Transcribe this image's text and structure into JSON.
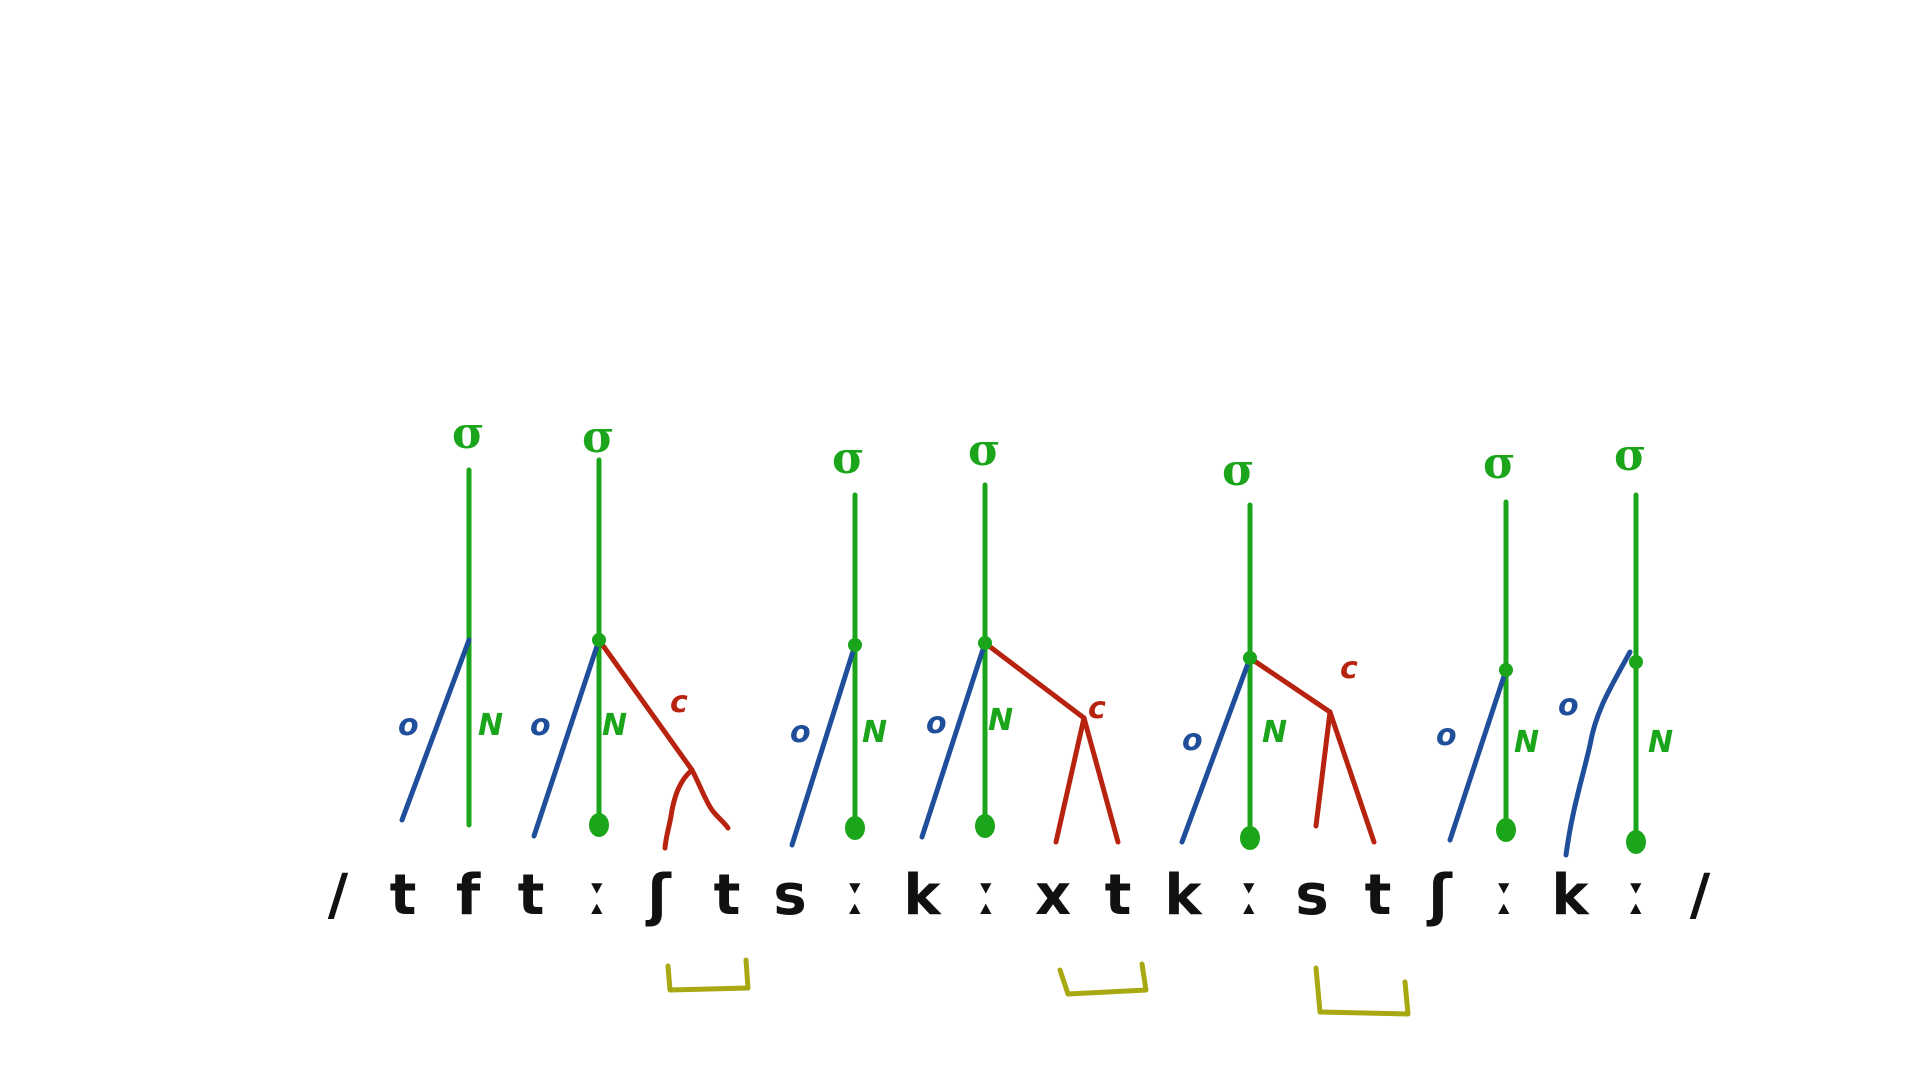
{
  "colors": {
    "onset": "#1f4e9a",
    "nucleus": "#1aa51a",
    "coda": "#b8230f",
    "extra": "#a8a813",
    "text": "#111111"
  },
  "segments": [
    "/",
    "t",
    "f",
    "t",
    "ː",
    "ʃ",
    "t",
    "s",
    "ː",
    "k",
    "ː",
    "x",
    "t",
    "k",
    "ː",
    "s",
    "t",
    "ʃ",
    "ː",
    "k",
    "ː",
    "/"
  ],
  "labels": {
    "sigma": "σ",
    "onset": "o",
    "nucleus": "N",
    "coda": "c"
  },
  "syllables": [
    {
      "kind": "extra",
      "onset": true,
      "coda": false
    },
    {
      "kind": "full",
      "onset": true,
      "coda": true,
      "coda_branching": true
    },
    {
      "kind": "full",
      "onset": true,
      "coda": false
    },
    {
      "kind": "full",
      "onset": true,
      "coda": true,
      "coda_branching": true
    },
    {
      "kind": "full",
      "onset": true,
      "coda": true,
      "coda_branching": true
    },
    {
      "kind": "full",
      "onset": true,
      "coda": false
    },
    {
      "kind": "full",
      "onset": true,
      "coda": false
    }
  ],
  "brackets": 3
}
